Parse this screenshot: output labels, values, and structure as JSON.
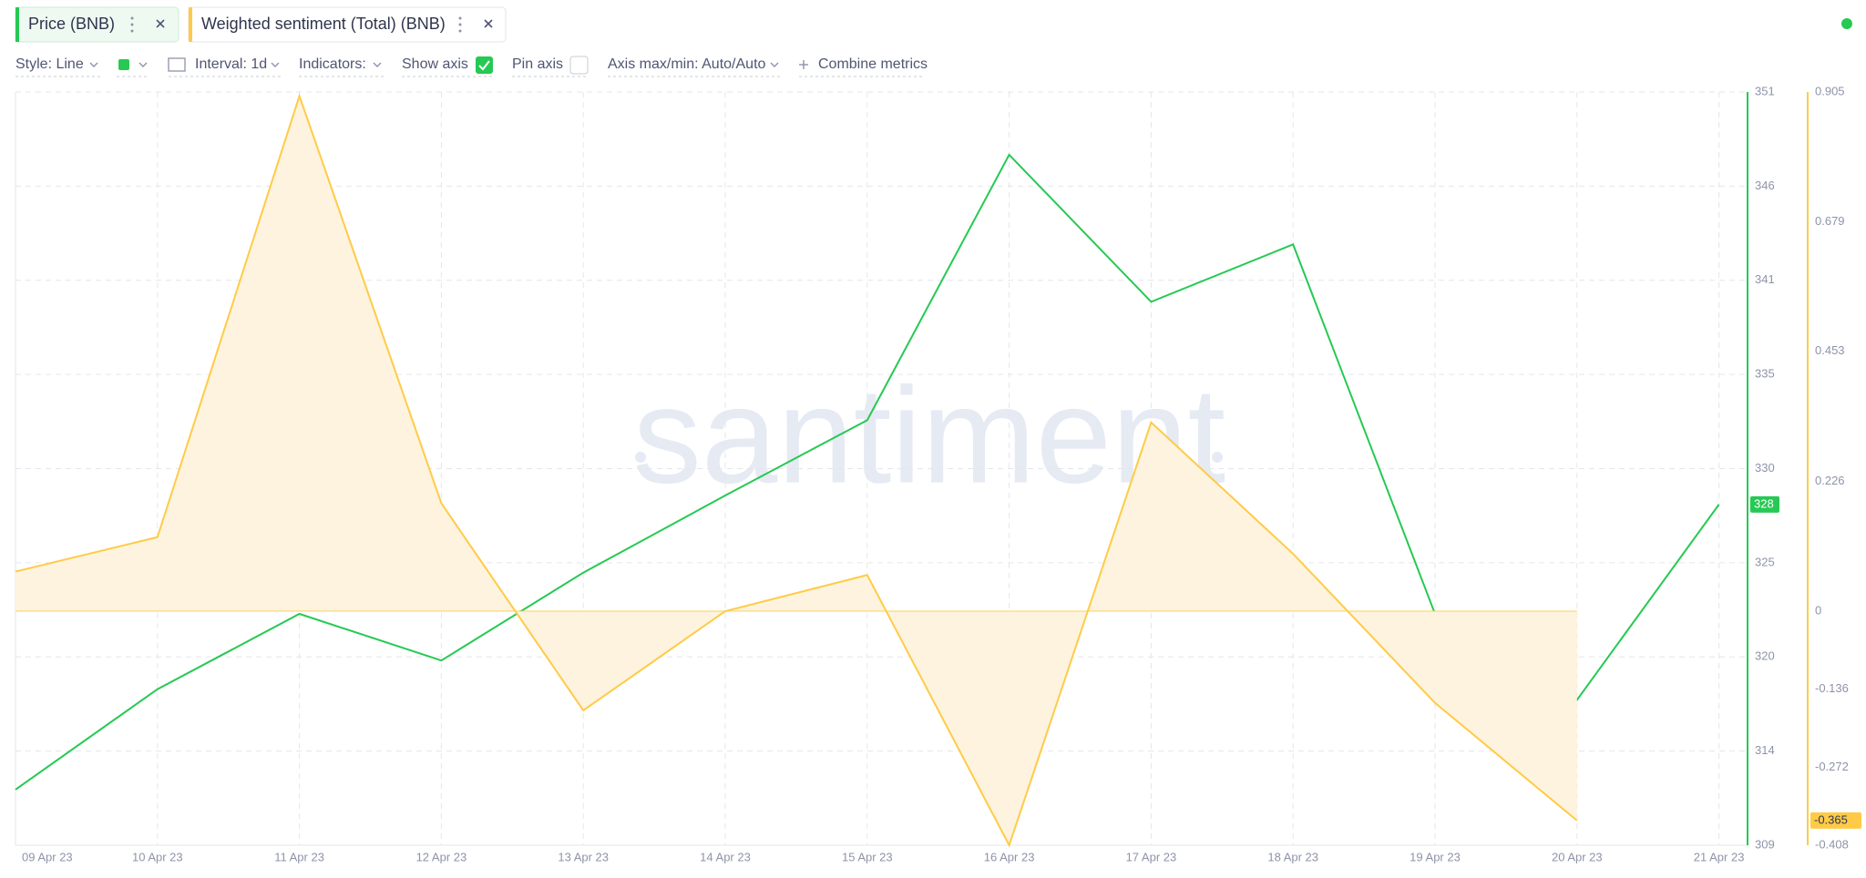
{
  "chart_data": {
    "type": "line",
    "categories": [
      "09 Apr 23",
      "10 Apr 23",
      "11 Apr 23",
      "12 Apr 23",
      "13 Apr 23",
      "14 Apr 23",
      "15 Apr 23",
      "16 Apr 23",
      "17 Apr 23",
      "18 Apr 23",
      "19 Apr 23",
      "20 Apr 23",
      "21 Apr 23"
    ],
    "series": [
      {
        "name": "Price (BNB)",
        "color": "#26c953",
        "values": [
          312.1,
          317.7,
          321.9,
          319.3,
          324.2,
          328.5,
          332.7,
          347.5,
          339.3,
          342.5,
          321.9,
          317.1,
          328
        ]
      },
      {
        "name": "Weighted sentiment (Total) (BNB)",
        "color": "#ffcb47",
        "axis": "y2",
        "fill": "#fdf3de",
        "values": [
          0.069,
          0.129,
          0.898,
          0.188,
          -0.173,
          0,
          0.063,
          -0.408,
          0.329,
          0.1,
          -0.16,
          -0.365,
          null
        ]
      }
    ],
    "ylim": [
      309,
      351
    ],
    "yticks": [
      {
        "value": 309,
        "label": "309"
      },
      {
        "value": 314.25,
        "label": "314"
      },
      {
        "value": 319.5,
        "label": "320"
      },
      {
        "value": 324.75,
        "label": "325"
      },
      {
        "value": 330,
        "label": "330"
      },
      {
        "value": 335.25,
        "label": "335"
      },
      {
        "value": 340.5,
        "label": "341"
      },
      {
        "value": 345.75,
        "label": "346"
      },
      {
        "value": 351,
        "label": "351"
      }
    ],
    "y2lim": [
      -0.408,
      0.905
    ],
    "y2ticks": [
      -0.408,
      -0.272,
      -0.136,
      0,
      0.226,
      0.453,
      0.679,
      0.905
    ],
    "grid": true,
    "watermark": "santiment"
  },
  "toolbar": {
    "style": "Style: Line",
    "interval": "Interval: 1d",
    "indicators": "Indicators:",
    "show_axis": "Show axis",
    "pin_axis": "Pin axis",
    "axis_range": "Axis max/min: Auto/Auto",
    "combine": "Combine metrics"
  }
}
